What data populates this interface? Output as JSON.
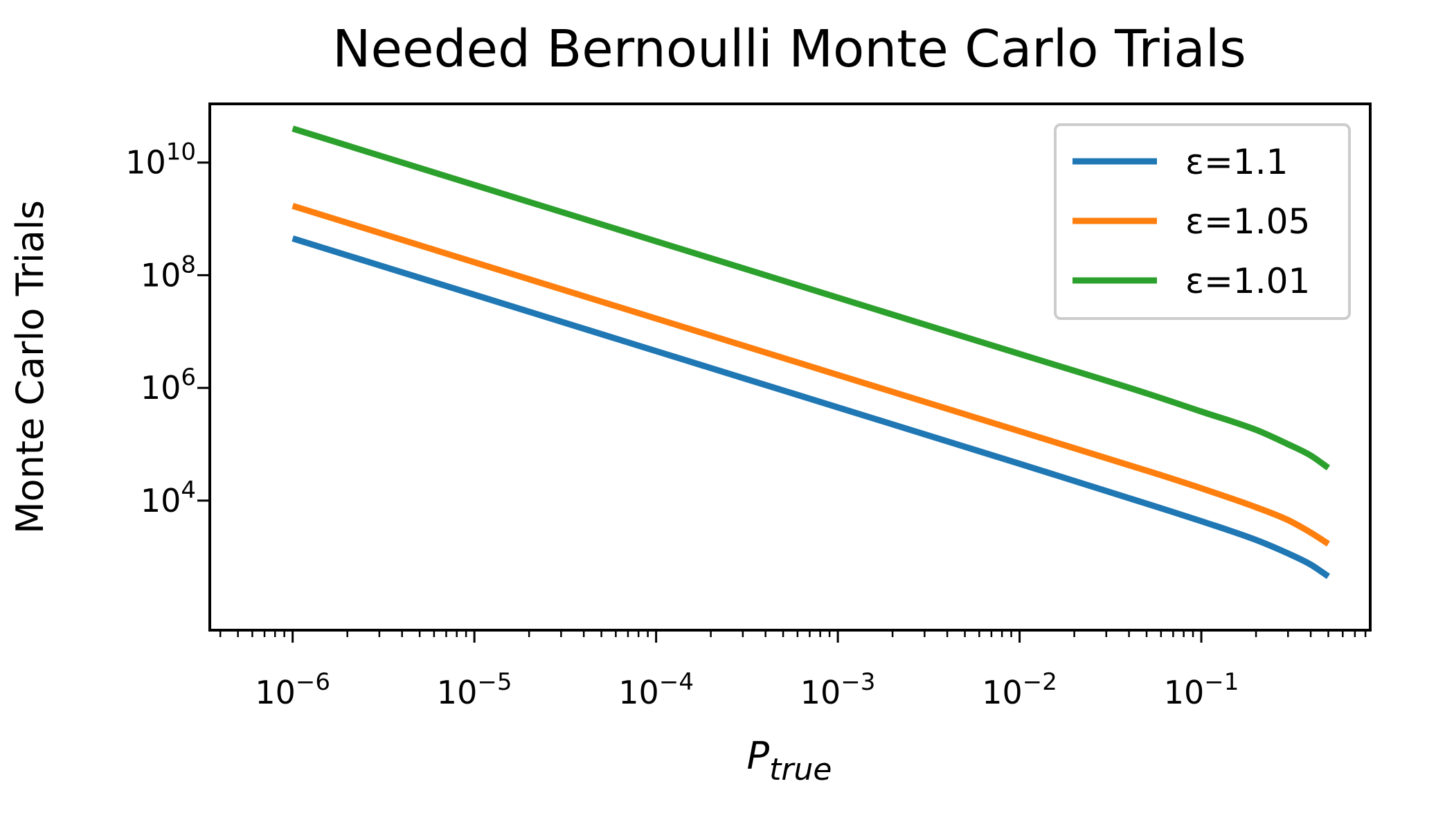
{
  "chart_data": {
    "type": "line",
    "title": "Needed Bernoulli Monte Carlo Trials",
    "xlabel": "P",
    "xlabel_sub": "true",
    "ylabel": "Monte Carlo Trials",
    "xscale": "log",
    "yscale": "log",
    "xlim": [
      3.5e-07,
      0.85
    ],
    "ylim": [
      50,
      110000000000.0
    ],
    "x_ticks": [
      {
        "value": 1e-06,
        "base": "10",
        "exp": "−6"
      },
      {
        "value": 1e-05,
        "base": "10",
        "exp": "−5"
      },
      {
        "value": 0.0001,
        "base": "10",
        "exp": "−4"
      },
      {
        "value": 0.001,
        "base": "10",
        "exp": "−3"
      },
      {
        "value": 0.01,
        "base": "10",
        "exp": "−2"
      },
      {
        "value": 0.1,
        "base": "10",
        "exp": "−1"
      }
    ],
    "y_ticks": [
      {
        "value": 10000.0,
        "base": "10",
        "exp": "4"
      },
      {
        "value": 1000000.0,
        "base": "10",
        "exp": "6"
      },
      {
        "value": 100000000.0,
        "base": "10",
        "exp": "8"
      },
      {
        "value": 10000000000.0,
        "base": "10",
        "exp": "10"
      }
    ],
    "grid": false,
    "legend_position": "top-right",
    "x": [
      1e-06,
      1e-05,
      0.0001,
      0.001,
      0.01,
      0.05,
      0.1,
      0.2,
      0.3,
      0.4,
      0.5
    ],
    "series": [
      {
        "name": "ε=1.1",
        "color": "#1f77b4",
        "values": [
          450000000,
          45000000,
          4500000,
          450000,
          45000,
          8800,
          4300,
          2000,
          1150,
          730,
          450
        ]
      },
      {
        "name": "ε=1.05",
        "color": "#ff7f0e",
        "values": [
          1700000000,
          170000000,
          17000000,
          1700000,
          170000,
          34000,
          16500,
          7600,
          4500,
          2700,
          1700
        ]
      },
      {
        "name": "ε=1.01",
        "color": "#2ca02c",
        "values": [
          40000000000,
          4000000000,
          400000000,
          40000000,
          4000000,
          800000,
          380000,
          180000,
          100000,
          63000,
          38000
        ]
      }
    ]
  }
}
